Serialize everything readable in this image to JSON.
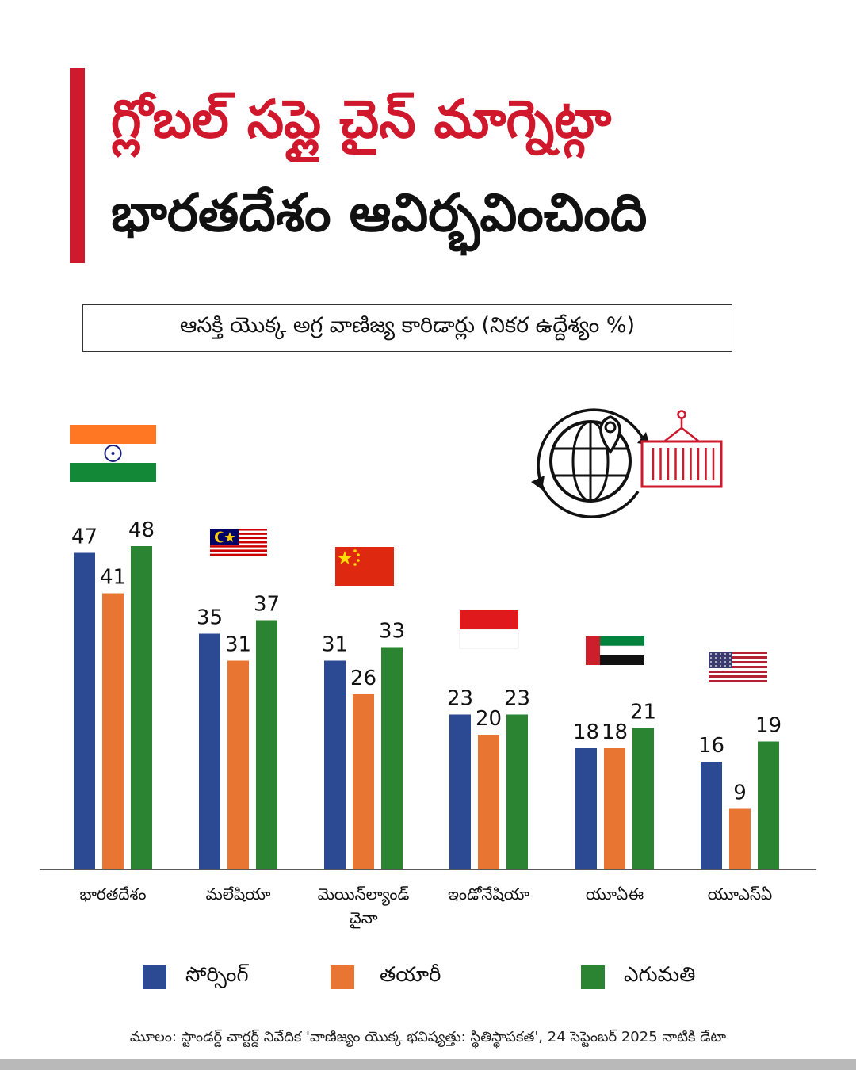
{
  "title": {
    "line1_red": "గ్లోబల్ సప్లై చైన్ మాగ్నెట్",
    "line1_black": "గా",
    "line2": "భారతదేశం ఆవిర్భవించింది"
  },
  "subtitle": "ఆసక్తి యొక్క అగ్ర వాణిజ్య కారిడార్లు (నికర ఉద్దేశ్యం %)",
  "colors": {
    "accent": "#cf1a2e",
    "sourcing": "#2c4a94",
    "manufacturing": "#e97533",
    "export": "#2a8431"
  },
  "icons": [
    "india-flag-icon",
    "malaysia-flag-icon",
    "china-flag-icon",
    "indonesia-flag-icon",
    "uae-flag-icon",
    "usa-flag-icon",
    "globe-container-icon"
  ],
  "chart_data": {
    "type": "bar",
    "categories": [
      "భారతదేశం",
      "మలేషియా",
      "మెయిన్‌ల్యాండ్ చైనా",
      "ఇండోనేషియా",
      "యూఏఈ",
      "యూఎస్ఏ"
    ],
    "series": [
      {
        "name": "సోర్సింగ్",
        "values": [
          47,
          35,
          31,
          23,
          18,
          16
        ]
      },
      {
        "name": "తయారీ",
        "values": [
          41,
          31,
          26,
          20,
          18,
          9
        ]
      },
      {
        "name": "ఎగుమతి",
        "values": [
          48,
          37,
          33,
          23,
          21,
          19
        ]
      }
    ],
    "title": "ఆసక్తి యొక్క అగ్ర వాణిజ్య కారిడార్లు (నికర ఉద్దేశ్యం %)",
    "ylim": [
      0,
      50
    ],
    "grid": false,
    "legend": "bottom"
  },
  "legend": [
    "సోర్సింగ్",
    "తయారీ",
    "ఎగుమతి"
  ],
  "source": "మూలం: స్టాండర్డ్ చార్టర్డ్ నివేదిక 'వాణిజ్యం యొక్క భవిష్యత్తు: స్థితిస్థాపకత', 24 సెప్టెంబర్ 2025 నాటికి డేటా"
}
